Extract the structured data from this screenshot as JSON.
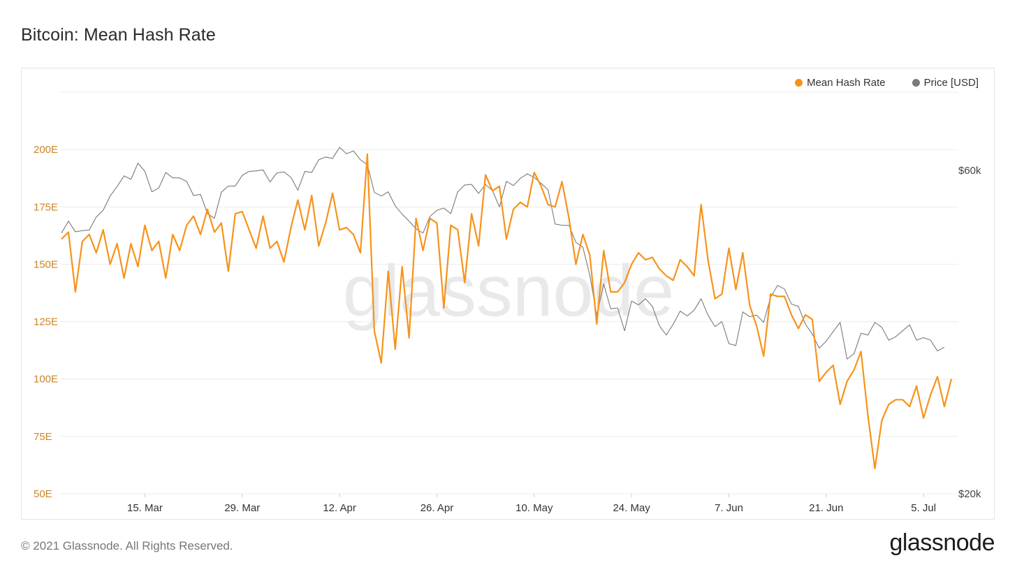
{
  "header": {
    "title": "Bitcoin: Mean Hash Rate"
  },
  "legend": {
    "items": [
      {
        "label": "Mean Hash Rate",
        "color": "#f7931a"
      },
      {
        "label": "Price [USD]",
        "color": "#7a7a7a"
      }
    ]
  },
  "watermark": "glassnode",
  "footer": {
    "copyright": "© 2021 Glassnode. All Rights Reserved.",
    "logo": "glassnode"
  },
  "chart_data": {
    "type": "line",
    "title": "Bitcoin: Mean Hash Rate",
    "x_ticks": [
      "15. Mar",
      "29. Mar",
      "12. Apr",
      "26. Apr",
      "10. May",
      "24. May",
      "7. Jun",
      "21. Jun",
      "5. Jul"
    ],
    "x_start": "2021-03-03",
    "left_axis": {
      "ticks": [
        "50E",
        "75E",
        "100E",
        "125E",
        "150E",
        "175E",
        "200E"
      ],
      "range": [
        50,
        225
      ],
      "color": "#c9862a"
    },
    "right_axis": {
      "ticks": [
        "$20k",
        "$60k"
      ],
      "scale": "log",
      "range": [
        20000,
        72000
      ]
    },
    "grid": true,
    "legend_position": "top-right",
    "series": [
      {
        "name": "Mean Hash Rate",
        "axis": "left",
        "color": "#f7931a",
        "values": [
          161,
          164,
          138,
          160,
          163,
          155,
          165,
          150,
          159,
          144,
          159,
          149,
          167,
          156,
          160,
          144,
          163,
          156,
          167,
          171,
          163,
          174,
          164,
          168,
          147,
          172,
          173,
          165,
          157,
          171,
          157,
          160,
          151,
          166,
          178,
          165,
          180,
          158,
          168,
          181,
          165,
          166,
          163,
          155,
          198,
          121,
          107,
          147,
          113,
          149,
          118,
          170,
          156,
          170,
          168,
          131,
          167,
          165,
          142,
          172,
          158,
          189,
          182,
          184,
          161,
          174,
          177,
          175,
          190,
          184,
          176,
          175,
          186,
          170,
          150,
          163,
          154,
          124,
          156,
          138,
          138,
          142,
          150,
          155,
          152,
          153,
          148,
          145,
          143,
          152,
          149,
          145,
          176,
          152,
          135,
          137,
          157,
          139,
          155,
          132,
          123,
          110,
          137,
          136,
          136,
          128,
          122,
          128,
          126,
          99,
          103,
          106,
          89,
          99,
          104,
          112,
          84,
          61,
          82,
          89,
          91,
          91,
          88,
          97,
          83,
          93,
          101,
          88,
          100
        ]
      },
      {
        "name": "Price [USD]",
        "axis": "right",
        "color": "#7a7a7a",
        "values": [
          48500,
          50500,
          48700,
          48900,
          49000,
          51200,
          52400,
          55000,
          56800,
          58900,
          58200,
          61500,
          59800,
          55800,
          56500,
          59600,
          58500,
          58500,
          57800,
          55100,
          55300,
          51800,
          51000,
          55700,
          56900,
          56900,
          59000,
          59800,
          59900,
          60100,
          57700,
          59500,
          59700,
          58600,
          56100,
          59800,
          59600,
          62200,
          62800,
          62500,
          64900,
          63500,
          64100,
          62200,
          61200,
          55700,
          55000,
          55800,
          53200,
          51700,
          50500,
          49200,
          48500,
          51300,
          52400,
          52800,
          51800,
          55800,
          57100,
          57200,
          55500,
          57200,
          56000,
          53000,
          57800,
          57000,
          58400,
          59300,
          58600,
          57400,
          56200,
          50000,
          49800,
          49800,
          47000,
          46200,
          42000,
          36700,
          40800,
          37500,
          37600,
          34800,
          38500,
          38000,
          38800,
          37800,
          35400,
          34300,
          35600,
          37200,
          36600,
          37300,
          38800,
          36700,
          35300,
          35900,
          33300,
          33100,
          37100,
          36500,
          36700,
          35800,
          39000,
          40600,
          40100,
          38100,
          37800,
          35600,
          34400,
          32800,
          33600,
          34700,
          35800,
          31600,
          32200,
          34500,
          34300,
          35800,
          35200,
          33700,
          34100,
          34800,
          35500,
          33700,
          34000,
          33700,
          32500,
          32900
        ]
      }
    ]
  }
}
